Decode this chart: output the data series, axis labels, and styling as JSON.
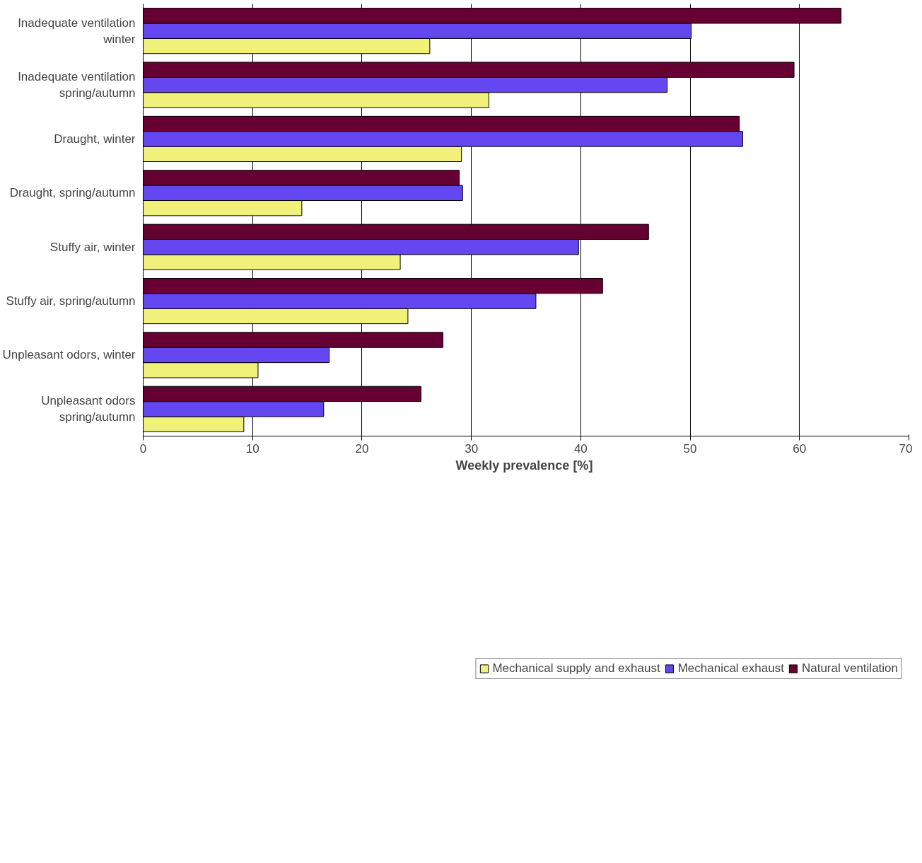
{
  "chart_data": {
    "type": "bar",
    "orientation": "horizontal",
    "xlabel": "Weekly prevalence  [%]",
    "categories": [
      "Inadequate ventilation\nwinter",
      "Inadequate ventilation\nspring/autumn",
      "Draught, winter",
      "Draught, spring/autumn",
      "Stuffy air, winter",
      "Stuffy air, spring/autumn",
      "Unpleasant odors, winter",
      "Unpleasant odors\nspring/autumn"
    ],
    "series": [
      {
        "name": "Mechanical supply and exhaust",
        "color": "#f0f07a",
        "values": [
          26.2,
          31.6,
          29.1,
          14.5,
          23.5,
          24.2,
          10.5,
          9.2
        ]
      },
      {
        "name": "Mechanical exhaust",
        "color": "#6447f0",
        "values": [
          50.1,
          47.9,
          54.8,
          29.2,
          39.8,
          35.9,
          17.0,
          16.5
        ]
      },
      {
        "name": "Natural ventilation",
        "color": "#660033",
        "values": [
          63.8,
          59.5,
          54.5,
          28.9,
          46.2,
          42.0,
          27.4,
          25.4
        ]
      }
    ],
    "xlim": [
      0,
      70
    ],
    "xticks": [
      0,
      10,
      20,
      30,
      40,
      50,
      60,
      70
    ],
    "grid": "x",
    "legend": "bottom"
  }
}
